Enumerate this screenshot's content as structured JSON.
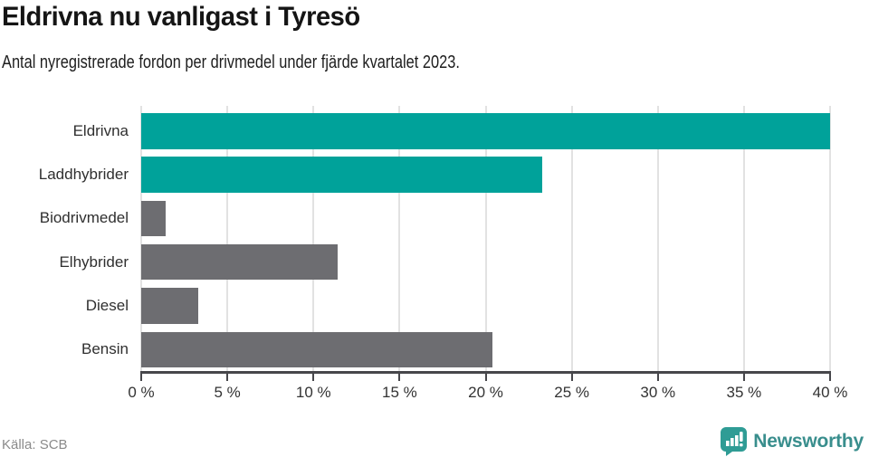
{
  "header": {
    "title": "Eldrivna nu vanligast i Tyresö",
    "subtitle": "Antal nyregistrerade fordon per drivmedel under fjärde kvartalet 2023."
  },
  "chart_data": {
    "type": "bar",
    "orientation": "horizontal",
    "title": "Eldrivna nu vanligast i Tyresö",
    "subtitle": "Antal nyregistrerade fordon per drivmedel under fjärde kvartalet 2023.",
    "categories": [
      "Eldrivna",
      "Laddhybrider",
      "Biodrivmedel",
      "Elhybrider",
      "Diesel",
      "Bensin"
    ],
    "values": [
      40.0,
      23.3,
      1.4,
      11.4,
      3.3,
      20.4
    ],
    "unit": "%",
    "xlabel": "",
    "ylabel": "",
    "xlim": [
      0,
      40
    ],
    "xticks": [
      0,
      5,
      10,
      15,
      20,
      25,
      30,
      35,
      40
    ],
    "xtick_labels": [
      "0 %",
      "5 %",
      "10 %",
      "15 %",
      "20 %",
      "25 %",
      "30 %",
      "35 %",
      "40 %"
    ],
    "bar_colors": [
      "#00a29a",
      "#00a29a",
      "#6d6d71",
      "#6d6d71",
      "#6d6d71",
      "#6d6d71"
    ],
    "grid": "vertical",
    "legend": "none"
  },
  "colors": {
    "accent_teal": "#00a29a",
    "neutral_gray": "#6d6d71",
    "gridline": "#e2e2e2",
    "axis": "#47474b",
    "brand_teal_icon": "#2f9c95",
    "brand_teal_text": "#398e8d"
  },
  "footer": {
    "source": "Källa: SCB",
    "brand": "Newsworthy"
  }
}
